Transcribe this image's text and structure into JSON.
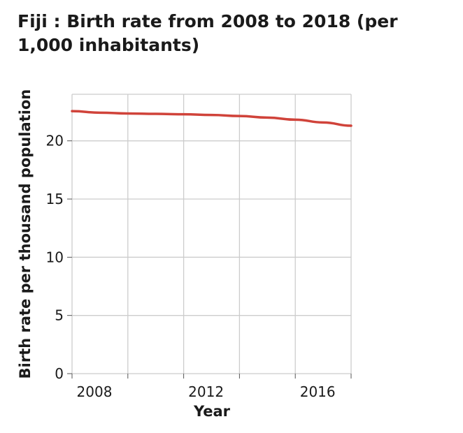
{
  "chart_data": {
    "type": "line",
    "title": "Fiji : Birth rate from 2008 to 2018 (per 1,000 inhabitants)",
    "xlabel": "Year",
    "ylabel": "Birth rate per thousand population",
    "x": [
      2008,
      2009,
      2010,
      2011,
      2012,
      2013,
      2014,
      2015,
      2016,
      2017,
      2018
    ],
    "series": [
      {
        "values": [
          22.55,
          22.42,
          22.35,
          22.32,
          22.28,
          22.22,
          22.13,
          22.0,
          21.82,
          21.58,
          21.3
        ],
        "color": "#d0433a"
      }
    ],
    "xlim": [
      2008,
      2018
    ],
    "ylim": [
      0,
      24
    ],
    "xticks": [
      2008,
      2012,
      2016
    ],
    "yticks": [
      0,
      5,
      10,
      15,
      20
    ],
    "grid": true,
    "legend": "none"
  }
}
